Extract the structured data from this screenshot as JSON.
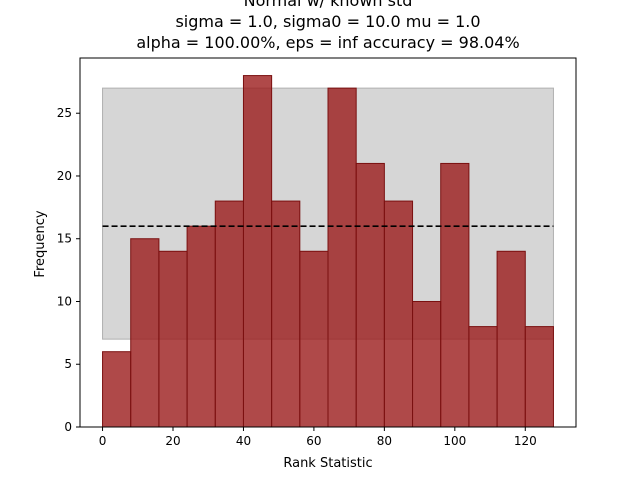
{
  "chart_data": {
    "type": "bar",
    "title_lines": [
      "Normal w/ known std",
      "sigma = 1.0, sigma0 = 10.0 mu = 1.0",
      "alpha = 100.00%, eps = inf accuracy = 98.04%"
    ],
    "xlabel": "Rank Statistic",
    "ylabel": "Frequency",
    "xlim": [
      -6.4,
      134.4
    ],
    "ylim": [
      0,
      29.4
    ],
    "xticks": [
      0,
      20,
      40,
      60,
      80,
      100,
      120
    ],
    "yticks": [
      0,
      5,
      10,
      15,
      20,
      25
    ],
    "bin_edges": [
      0,
      8,
      16,
      24,
      32,
      40,
      48,
      56,
      64,
      72,
      80,
      88,
      96,
      104,
      112,
      120,
      128
    ],
    "values": [
      6,
      15,
      14,
      16,
      18,
      28,
      18,
      14,
      27,
      21,
      18,
      10,
      21,
      8,
      14,
      8
    ],
    "band": {
      "x": [
        0,
        128
      ],
      "y": [
        7,
        27
      ]
    },
    "reference_line": {
      "y": 16,
      "x": [
        0,
        128
      ],
      "style": "dashed"
    },
    "grid": false,
    "legend": "none",
    "colors": {
      "bar_fill": "#9b1b1b",
      "bar_edge": "#7a1010",
      "band": "#c8c8c8",
      "reference_line": "#000000"
    }
  }
}
